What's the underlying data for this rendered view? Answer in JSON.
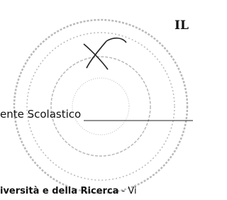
{
  "stamp_heading": "IL",
  "signature_caption": "ente Scolastico",
  "footer": {
    "bold": "iversità e della Ricerca",
    "rest": " - Vi"
  }
}
